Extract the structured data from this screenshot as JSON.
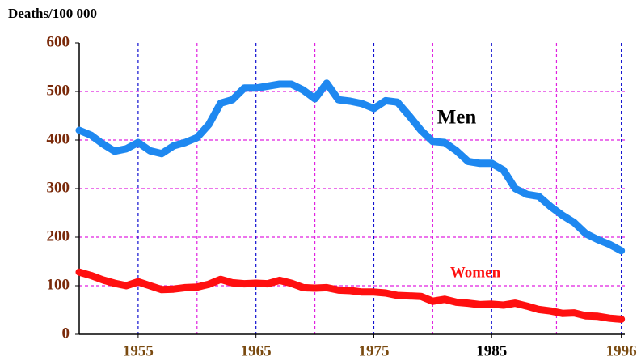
{
  "chart_data": {
    "type": "line",
    "y_label": "Deaths/100 000",
    "x": [
      1950,
      1951,
      1952,
      1953,
      1954,
      1955,
      1956,
      1957,
      1958,
      1959,
      1960,
      1961,
      1962,
      1963,
      1964,
      1965,
      1966,
      1967,
      1968,
      1969,
      1970,
      1971,
      1972,
      1973,
      1974,
      1975,
      1976,
      1977,
      1978,
      1979,
      1980,
      1981,
      1982,
      1983,
      1984,
      1985,
      1986,
      1987,
      1988,
      1989,
      1990,
      1991,
      1992,
      1993,
      1994,
      1995,
      1996
    ],
    "series": [
      {
        "name": "Men",
        "color": "#1e88f0",
        "label_color": "#000000",
        "values": [
          420,
          410,
          392,
          377,
          382,
          395,
          378,
          372,
          388,
          395,
          405,
          432,
          476,
          483,
          507,
          507,
          511,
          515,
          515,
          503,
          485,
          517,
          483,
          480,
          475,
          465,
          481,
          478,
          450,
          420,
          397,
          395,
          378,
          356,
          352,
          352,
          338,
          300,
          288,
          284,
          263,
          245,
          230,
          207,
          195,
          185,
          172
        ]
      },
      {
        "name": "Women",
        "color": "#ff1010",
        "label_color": "#ff1010",
        "values": [
          128,
          121,
          112,
          105,
          100,
          108,
          100,
          92,
          93,
          96,
          97,
          103,
          113,
          106,
          104,
          105,
          104,
          111,
          105,
          96,
          95,
          96,
          91,
          90,
          87,
          87,
          85,
          80,
          79,
          78,
          68,
          72,
          66,
          64,
          61,
          62,
          60,
          64,
          58,
          51,
          48,
          43,
          44,
          38,
          37,
          33,
          31
        ]
      }
    ],
    "xlim": [
      1950,
      1996.3
    ],
    "xticks": [
      1955,
      1965,
      1975,
      1985,
      1996
    ],
    "ylim": [
      0,
      600
    ],
    "yticks": [
      0,
      100,
      200,
      300,
      400,
      500,
      600
    ],
    "grid": true
  }
}
